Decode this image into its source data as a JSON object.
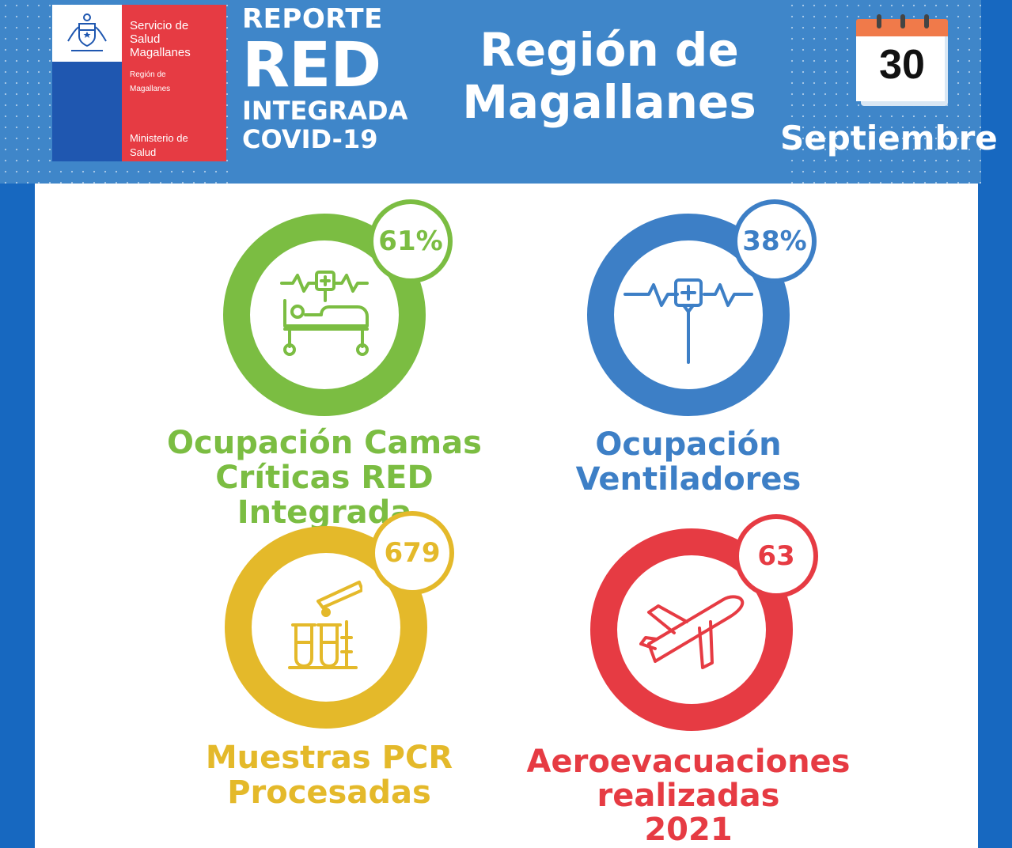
{
  "header": {
    "logo": {
      "line1": "Servicio de",
      "line2": "Salud",
      "line3": "Magallanes",
      "sub1": "Región de",
      "sub2": "Magallanes",
      "ministry1": "Ministerio de",
      "ministry2": "Salud"
    },
    "report": {
      "line1": "REPORTE",
      "line2": "RED",
      "line3": "INTEGRADA",
      "line4": "COVID-19"
    },
    "region": {
      "line1": "Región de",
      "line2": "Magallanes"
    },
    "date": {
      "day": "30",
      "month": "Septiembre"
    }
  },
  "stats": [
    {
      "value": "61%",
      "label_line1": "Ocupación Camas",
      "label_line2": "Críticas RED Integrada",
      "color": "#7bbd42",
      "icon": "hospital-bed-icon"
    },
    {
      "value": "38%",
      "label_line1": "Ocupación",
      "label_line2": "Ventiladores",
      "color": "#3d7fc6",
      "icon": "ventilator-icon"
    },
    {
      "value": "679",
      "label_line1": "Muestras PCR",
      "label_line2": "Procesadas",
      "color": "#e4b92a",
      "icon": "test-tubes-icon"
    },
    {
      "value": "63",
      "label_line1": "Aeroevacuaciones",
      "label_line2": "realizadas",
      "label_line3": "2021",
      "color": "#e63b43",
      "icon": "airplane-icon"
    }
  ]
}
